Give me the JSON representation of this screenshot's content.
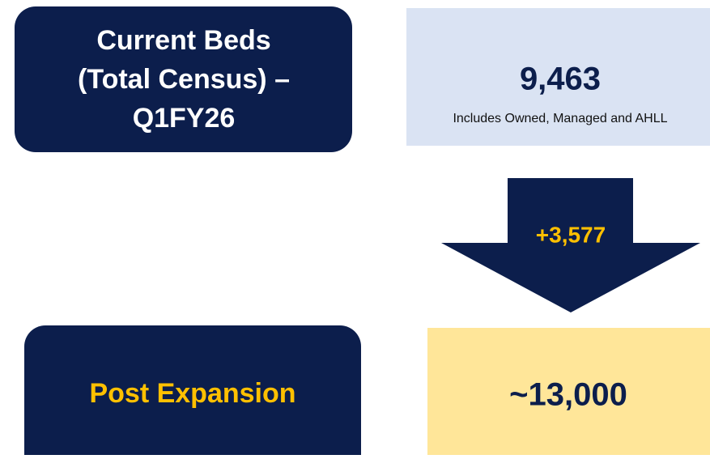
{
  "current": {
    "title_lines": [
      "Current Beds",
      "(Total Census) –",
      "Q1FY26"
    ],
    "value": "9,463",
    "note": "Includes  Owned, Managed and AHLL"
  },
  "change": "+3,577",
  "post": {
    "title": "Post Expansion",
    "value": "~13,000"
  }
}
